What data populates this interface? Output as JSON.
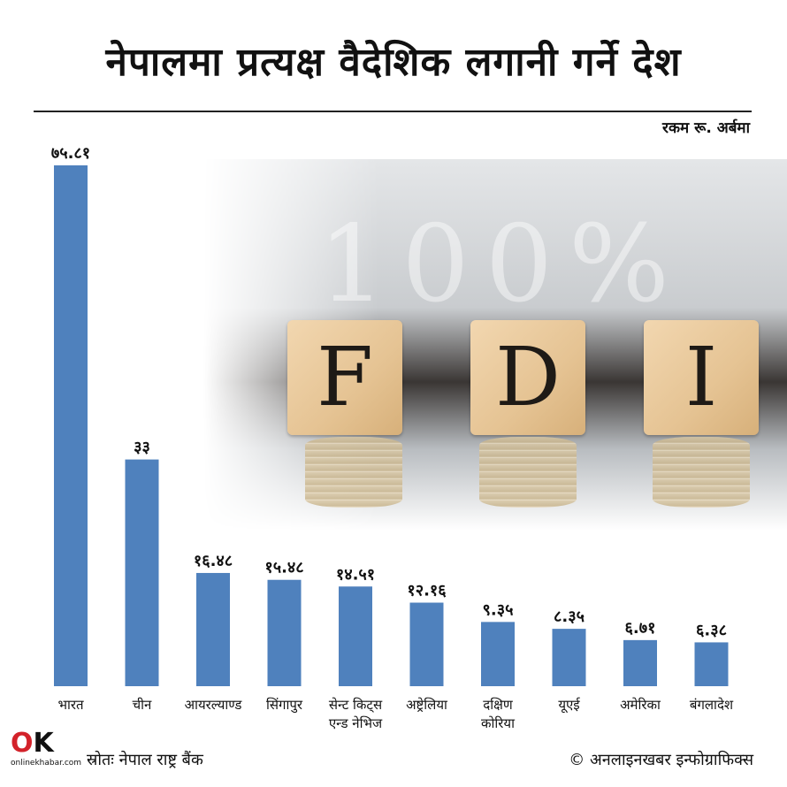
{
  "title": "नेपालमा प्रत्यक्ष वैदेशिक लगानी गर्ने देश",
  "unit_label": "रकम रू. अर्बमा",
  "source": "स्रोतः नेपाल राष्ट्र बैंक",
  "credit": "© अनलाइनखबर इन्फोग्राफिक्स",
  "logo": {
    "mark": "OK",
    "brand": "onlinekhabar.com"
  },
  "photo": {
    "chalk_text": "100%",
    "cubes": [
      "F",
      "D",
      "I"
    ]
  },
  "colors": {
    "bar": "#4f81bd"
  },
  "chart_data": {
    "type": "bar",
    "categories": [
      "भारत",
      "चीन",
      "आयरल्याण्ड",
      "सिंगापुर",
      "सेन्ट किट्स एन्ड नेभिज",
      "अष्ट्रेलिया",
      "दक्षिण कोरिया",
      "यूएई",
      "अमेरिका",
      "बंगलादेश"
    ],
    "category_lines": [
      [
        "भारत"
      ],
      [
        "चीन"
      ],
      [
        "आयरल्याण्ड"
      ],
      [
        "सिंगापुर"
      ],
      [
        "सेन्ट  किट्स",
        "एन्ड  नेभिज"
      ],
      [
        "अष्ट्रेलिया"
      ],
      [
        "दक्षिण",
        "कोरिया"
      ],
      [
        "यूएई"
      ],
      [
        "अमेरिका"
      ],
      [
        "बंगलादेश"
      ]
    ],
    "values": [
      75.81,
      33,
      16.48,
      15.48,
      14.51,
      12.16,
      9.35,
      8.35,
      6.71,
      6.38
    ],
    "value_labels": [
      "७५.८१",
      "३३",
      "१६.४८",
      "१५.४८",
      "१४.५१",
      "१२.१६",
      "९.३५",
      "८.३५",
      "६.७१",
      "६.३८"
    ],
    "ylabel": "रकम रू. अर्बमा",
    "ylim": [
      0,
      75.81
    ],
    "grid": false,
    "legend": "none"
  }
}
